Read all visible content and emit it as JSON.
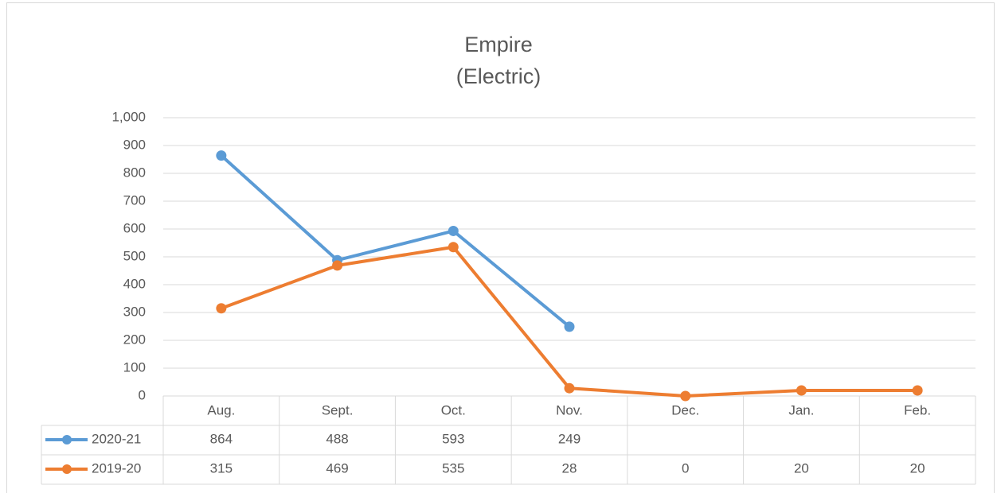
{
  "chart_data": {
    "type": "line",
    "title": "Empire",
    "subtitle": "(Electric)",
    "categories": [
      "Aug.",
      "Sept.",
      "Oct.",
      "Nov.",
      "Dec.",
      "Jan.",
      "Feb."
    ],
    "series": [
      {
        "name": "2020-21",
        "color": "#5b9bd5",
        "values": [
          864,
          488,
          593,
          249,
          null,
          null,
          null
        ]
      },
      {
        "name": "2019-20",
        "color": "#ed7d31",
        "values": [
          315,
          469,
          535,
          28,
          0,
          20,
          20
        ]
      }
    ],
    "ylim": [
      0,
      1000
    ],
    "yticks": [
      0,
      100,
      200,
      300,
      400,
      500,
      600,
      700,
      800,
      900,
      {
        "value": 1000,
        "label": "1,000"
      }
    ],
    "grid": true,
    "data_table": true
  }
}
